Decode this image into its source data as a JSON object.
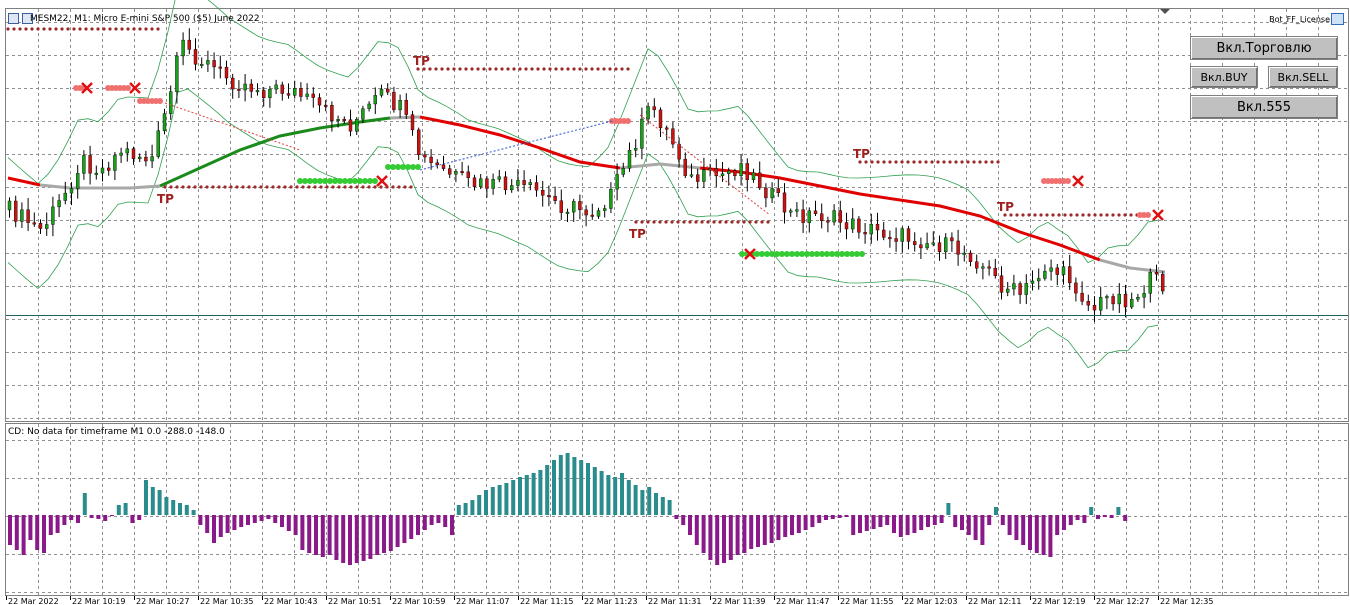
{
  "window": {
    "title": "MESM22, M1:  Micro E-mini S&P 500 ($5) June 2022",
    "license_label": "Bot_FF_License"
  },
  "buttons": {
    "trading": "Вкл.Торговлю",
    "buy": "Вкл.BUY",
    "sell": "Вкл.SELL",
    "v555": "Вкл.555"
  },
  "indicator": {
    "label": "CD: No data for timeframe M1 0.0 -288.0 -148.0"
  },
  "tp_label": "TP",
  "colors": {
    "bull": "#19a019",
    "bear": "#cc1111",
    "ma_red": "#e00000",
    "ma_green": "#1a8a1a",
    "ma_gray": "#a8a8a8",
    "hist_pos": "#2a8c8c",
    "hist_neg": "#8a1a8a",
    "tp_dots": "#9c2a2a",
    "sl_dots": "#33cc33"
  },
  "time_axis": [
    "22 Mar 2022",
    "22 Mar 10:19",
    "22 Mar 10:27",
    "22 Mar 10:35",
    "22 Mar 10:43",
    "22 Mar 10:51",
    "22 Mar 10:59",
    "22 Mar 11:07",
    "22 Mar 11:15",
    "22 Mar 11:23",
    "22 Mar 11:31",
    "22 Mar 11:39",
    "22 Mar 11:47",
    "22 Mar 11:55",
    "22 Mar 12:03",
    "22 Mar 12:11",
    "22 Mar 12:19",
    "22 Mar 12:27",
    "22 Mar 12:35"
  ],
  "histogram": [
    -30,
    -35,
    -40,
    -25,
    -35,
    -38,
    -20,
    -18,
    -10,
    -5,
    -8,
    22,
    -3,
    -4,
    -6,
    0,
    10,
    12,
    -8,
    -5,
    35,
    28,
    25,
    18,
    15,
    12,
    10,
    5,
    -10,
    -18,
    -28,
    -22,
    -18,
    -15,
    -12,
    -10,
    -8,
    -6,
    -4,
    -8,
    -12,
    -16,
    -20,
    -35,
    -38,
    -40,
    -42,
    -40,
    -45,
    -48,
    -50,
    -48,
    -46,
    -44,
    -40,
    -38,
    -36,
    -32,
    -28,
    -24,
    -20,
    -15,
    -10,
    -8,
    -12,
    -20,
    10,
    12,
    15,
    20,
    25,
    28,
    30,
    32,
    35,
    38,
    40,
    42,
    45,
    50,
    55,
    60,
    62,
    58,
    55,
    52,
    48,
    44,
    40,
    38,
    42,
    35,
    30,
    25,
    28,
    22,
    18,
    15,
    -4,
    -10,
    -20,
    -30,
    -38,
    -45,
    -50,
    -48,
    -45,
    -40,
    -38,
    -34,
    -32,
    -30,
    -28,
    -25,
    -22,
    -20,
    -18,
    -15,
    -12,
    -8,
    -5,
    -4,
    -3,
    -2,
    -20,
    -18,
    -16,
    -14,
    -12,
    -10,
    -18,
    -22,
    -20,
    -18,
    -15,
    -12,
    -10,
    -8,
    12,
    -12,
    -15,
    -20,
    -25,
    -30,
    -10,
    8,
    -10,
    -20,
    -25,
    -30,
    -35,
    -38,
    -40,
    -42,
    -20,
    -15,
    -10,
    -5,
    -8,
    8,
    -4,
    -2,
    -3,
    8,
    -6
  ]
}
